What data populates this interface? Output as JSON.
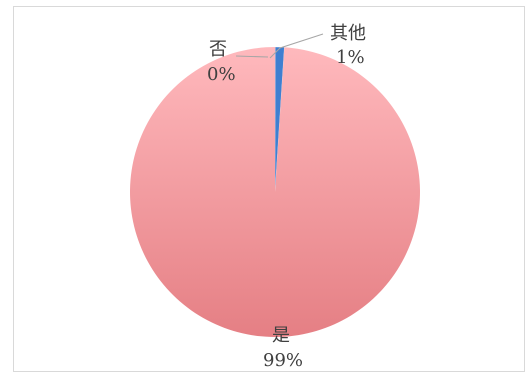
{
  "chart_data": {
    "type": "pie",
    "title": "",
    "categories": [
      "否",
      "其他",
      "是"
    ],
    "values": [
      0,
      1,
      99
    ],
    "value_labels": [
      "0%",
      "1%",
      "99%"
    ],
    "colors": {
      "是": "#f4a3a6",
      "其他": "#3f7fd0",
      "否": "#a9c4e8",
      "leader_line": "#a6a6a6",
      "label_text": "#404040"
    },
    "legend": "none",
    "data_labels": "outside with leader lines"
  }
}
